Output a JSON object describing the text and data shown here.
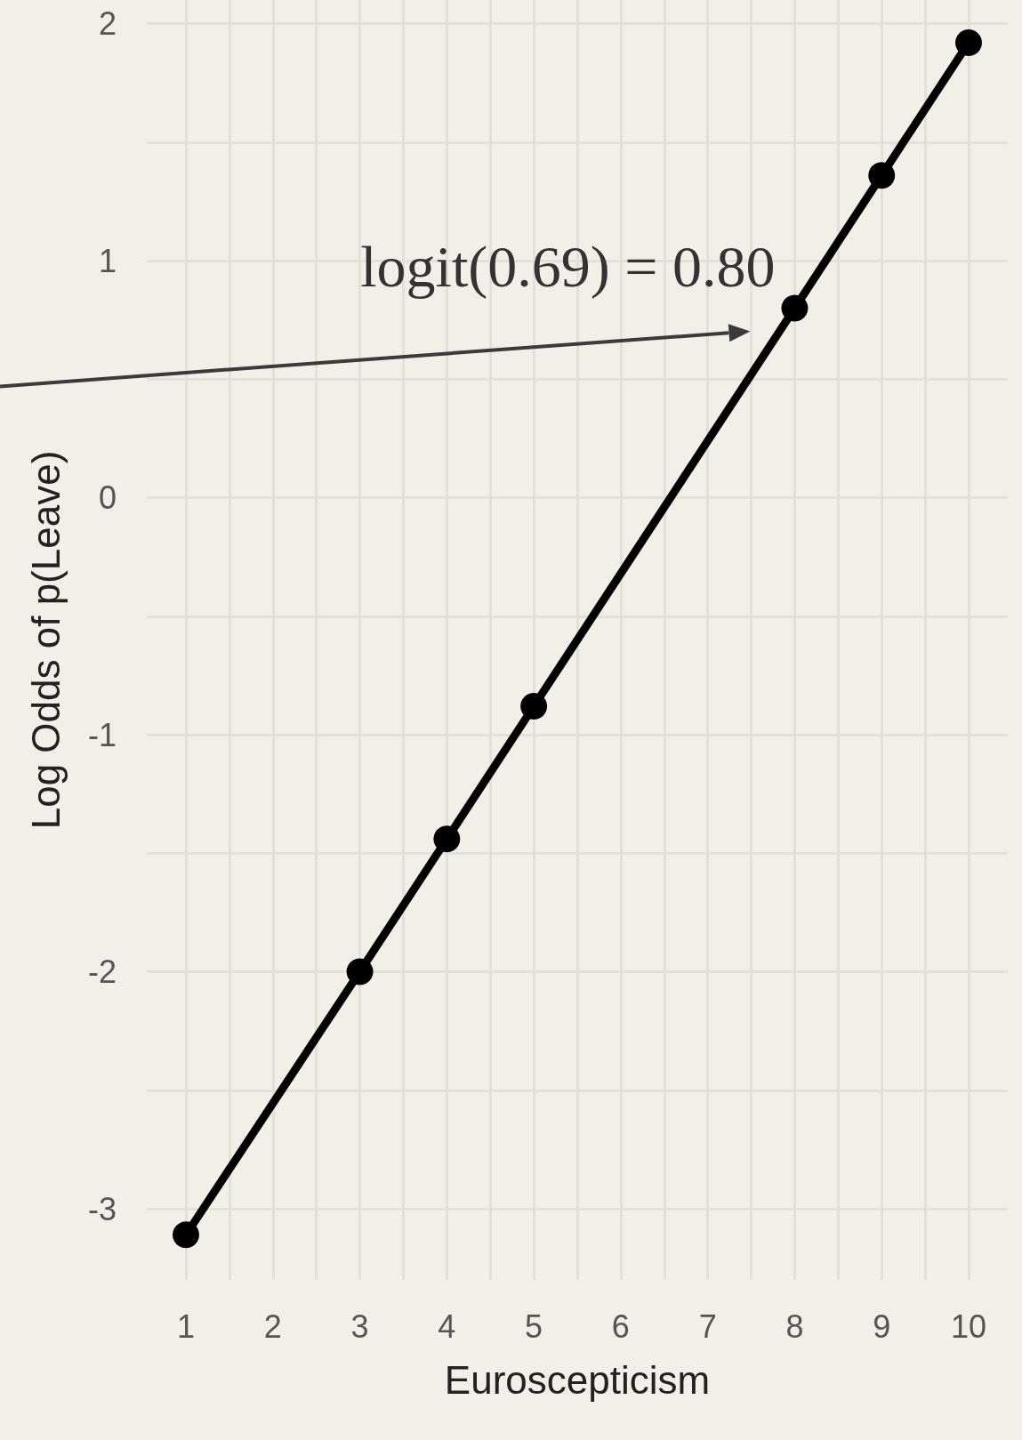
{
  "chart_data": {
    "type": "line",
    "xlabel": "Euroscepticism",
    "ylabel": "Log Odds of p(Leave)",
    "x": [
      1,
      3,
      4,
      5,
      8,
      9,
      10
    ],
    "series": [
      {
        "color": "#000000",
        "values": [
          -3.11,
          -2.0,
          -1.44,
          -0.88,
          0.8,
          1.36,
          1.92
        ]
      }
    ],
    "xlim": [
      0.55,
      10.45
    ],
    "xticks": [
      1,
      {
        "value": 1.5,
        "label": null
      },
      2,
      {
        "value": 2.5,
        "label": null
      },
      3,
      {
        "value": 3.5,
        "label": null
      },
      4,
      {
        "value": 4.5,
        "label": null
      },
      5,
      {
        "value": 5.5,
        "label": null
      },
      6,
      {
        "value": 6.5,
        "label": null
      },
      7,
      {
        "value": 7.5,
        "label": null
      },
      8,
      {
        "value": 8.5,
        "label": null
      },
      9,
      {
        "value": 9.5,
        "label": null
      },
      10
    ],
    "ylim": [
      -3.3,
      2.1
    ],
    "yticks": [
      -3,
      {
        "value": -2.5,
        "label": null
      },
      -2,
      {
        "value": -1.5,
        "label": null
      },
      -1,
      {
        "value": -0.5,
        "label": null
      },
      0,
      {
        "value": 0.5,
        "label": null
      },
      1,
      {
        "value": 1.5,
        "label": null
      },
      2
    ],
    "grid": true,
    "marker": "circle",
    "line_style": "solid",
    "annotations": [
      {
        "text": "logit(0.69) = 0.80",
        "x": 8,
        "y": 0.8
      }
    ]
  }
}
